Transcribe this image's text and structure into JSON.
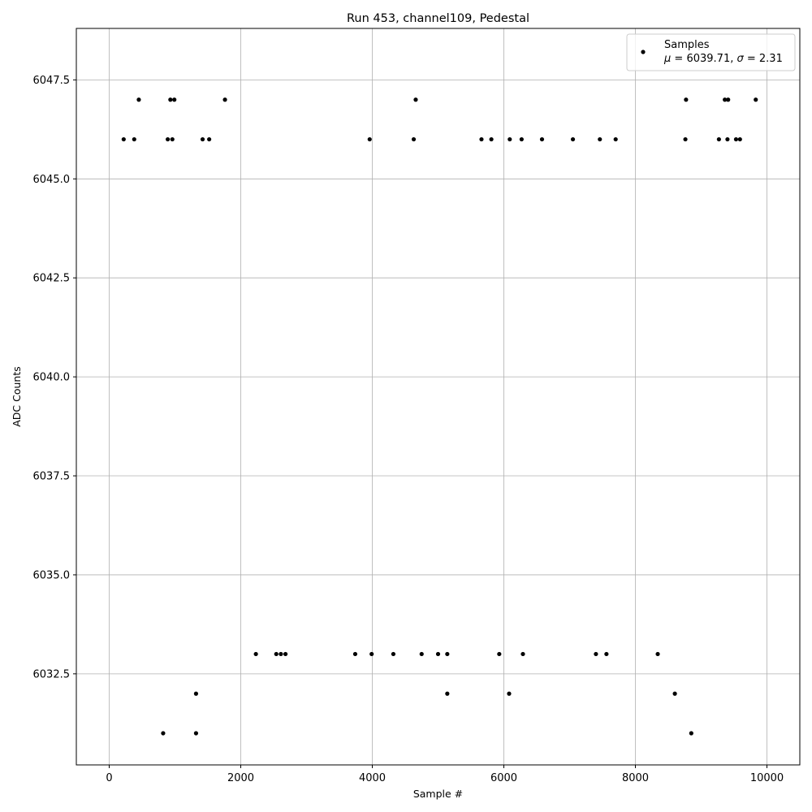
{
  "chart_data": {
    "type": "scatter",
    "title": "Run 453, channel109, Pedestal",
    "xlabel": "Sample #",
    "ylabel": "ADC Counts",
    "xlim": [
      -500,
      10500
    ],
    "ylim": [
      6030.2,
      6048.8
    ],
    "x_ticks": [
      0,
      2000,
      4000,
      6000,
      8000,
      10000
    ],
    "y_ticks": [
      6032.5,
      6035.0,
      6037.5,
      6040.0,
      6042.5,
      6045.0,
      6047.5
    ],
    "grid": true,
    "legend_position": "top-right",
    "marker_color": "#000000",
    "legend": {
      "series_label": "Samples",
      "mu_value": "6039.71",
      "sigma_value": "2.31"
    },
    "series": [
      {
        "name": "Samples",
        "points": [
          [
            450,
            6047
          ],
          [
            930,
            6047
          ],
          [
            990,
            6047
          ],
          [
            1760,
            6047
          ],
          [
            4660,
            6047
          ],
          [
            8770,
            6047
          ],
          [
            9360,
            6047
          ],
          [
            9410,
            6047
          ],
          [
            9830,
            6047
          ],
          [
            220,
            6046
          ],
          [
            380,
            6046
          ],
          [
            890,
            6046
          ],
          [
            960,
            6046
          ],
          [
            1420,
            6046
          ],
          [
            1520,
            6046
          ],
          [
            3960,
            6046
          ],
          [
            4630,
            6046
          ],
          [
            5660,
            6046
          ],
          [
            5810,
            6046
          ],
          [
            6090,
            6046
          ],
          [
            6270,
            6046
          ],
          [
            6580,
            6046
          ],
          [
            7050,
            6046
          ],
          [
            7460,
            6046
          ],
          [
            7700,
            6046
          ],
          [
            8760,
            6046
          ],
          [
            9270,
            6046
          ],
          [
            9400,
            6046
          ],
          [
            9530,
            6046
          ],
          [
            9590,
            6046
          ],
          [
            5140,
            6032
          ],
          [
            6080,
            6032
          ],
          [
            8600,
            6032
          ],
          [
            1320,
            6032
          ],
          [
            820,
            6031
          ],
          [
            1320,
            6031
          ],
          [
            8850,
            6031
          ],
          [
            2230,
            6033
          ],
          [
            2540,
            6033
          ],
          [
            2610,
            6033
          ],
          [
            2680,
            6033
          ],
          [
            3740,
            6033
          ],
          [
            3990,
            6033
          ],
          [
            4320,
            6033
          ],
          [
            4750,
            6033
          ],
          [
            5000,
            6033
          ],
          [
            5140,
            6033
          ],
          [
            5930,
            6033
          ],
          [
            6290,
            6033
          ],
          [
            7400,
            6033
          ],
          [
            7560,
            6033
          ],
          [
            8340,
            6033
          ]
        ]
      }
    ]
  }
}
